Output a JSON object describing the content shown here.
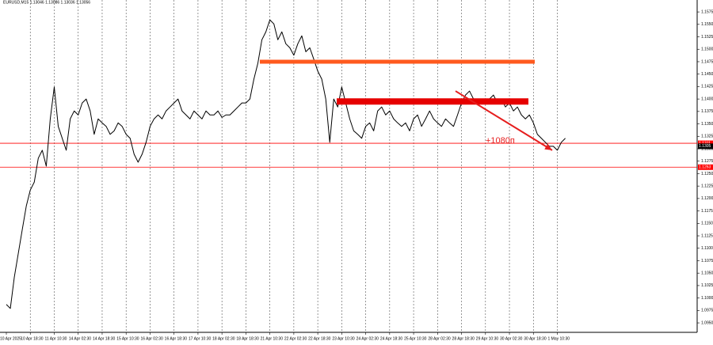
{
  "chart_data": {
    "type": "line",
    "title": "EURUSD,M15  1.13046 1.13086 1.13036 1.13056",
    "categories": [
      "10 Apr 2025",
      null,
      null,
      null,
      null,
      null,
      "10 Apr 18:30",
      null,
      null,
      null,
      null,
      null,
      "11 Apr 10:30",
      null,
      null,
      null,
      null,
      null,
      "14 Apr 02:30",
      null,
      null,
      null,
      null,
      null,
      "14 Apr 18:30",
      null,
      null,
      null,
      null,
      null,
      "15 Apr 10:30",
      null,
      null,
      null,
      null,
      null,
      "16 Apr 02:30",
      null,
      null,
      null,
      null,
      null,
      "16 Apr 18:30",
      null,
      null,
      null,
      null,
      null,
      "17 Apr 10:30",
      null,
      null,
      null,
      null,
      null,
      "18 Apr 02:30",
      null,
      null,
      null,
      null,
      null,
      "18 Apr 18:30",
      null,
      null,
      null,
      null,
      null,
      "21 Apr 10:30",
      null,
      null,
      null,
      null,
      null,
      "22 Apr 02:30",
      null,
      null,
      null,
      null,
      null,
      "22 Apr 18:30",
      null,
      null,
      null,
      null,
      null,
      "23 Apr 10:30",
      null,
      null,
      null,
      null,
      null,
      "24 Apr 02:30",
      null,
      null,
      null,
      null,
      null,
      "24 Apr 18:30",
      null,
      null,
      null,
      null,
      null,
      "25 Apr 10:30",
      null,
      null,
      null,
      null,
      null,
      "28 Apr 02:30",
      null,
      null,
      null,
      null,
      null,
      "28 Apr 18:30",
      null,
      null,
      null,
      null,
      null,
      "29 Apr 10:30",
      null,
      null,
      null,
      null,
      null,
      "30 Apr 02:30",
      null,
      null,
      null,
      null,
      null,
      "30 Apr 18:30",
      null,
      null,
      null,
      null,
      null,
      "1 May 10:30",
      null,
      null
    ],
    "series": [
      {
        "name": "EURUSD",
        "color": "#000000",
        "values": [
          1.0987,
          1.0979,
          1.1042,
          1.109,
          1.1138,
          1.1185,
          1.1217,
          1.1233,
          1.1281,
          1.1297,
          1.1265,
          1.136,
          1.1424,
          1.1345,
          1.1321,
          1.1297,
          1.136,
          1.1376,
          1.1368,
          1.1392,
          1.14,
          1.1376,
          1.1329,
          1.136,
          1.1352,
          1.1345,
          1.1329,
          1.1336,
          1.1352,
          1.1345,
          1.1329,
          1.1321,
          1.1289,
          1.1273,
          1.1289,
          1.1313,
          1.1345,
          1.136,
          1.1368,
          1.136,
          1.1376,
          1.1384,
          1.1392,
          1.14,
          1.1376,
          1.1368,
          1.136,
          1.1376,
          1.1368,
          1.136,
          1.1376,
          1.1368,
          1.1368,
          1.1376,
          1.1363,
          1.1368,
          1.1368,
          1.1376,
          1.1384,
          1.1392,
          1.1392,
          1.14,
          1.144,
          1.1472,
          1.1519,
          1.1535,
          1.1559,
          1.1551,
          1.1519,
          1.1535,
          1.1511,
          1.1503,
          1.1488,
          1.1511,
          1.1527,
          1.1495,
          1.1503,
          1.148,
          1.1456,
          1.144,
          1.14,
          1.1313,
          1.14,
          1.1384,
          1.1424,
          1.1392,
          1.136,
          1.1336,
          1.1329,
          1.1321,
          1.1345,
          1.1352,
          1.1336,
          1.1376,
          1.1384,
          1.1368,
          1.1376,
          1.136,
          1.1352,
          1.1345,
          1.1352,
          1.1336,
          1.136,
          1.1368,
          1.1345,
          1.136,
          1.1376,
          1.136,
          1.1352,
          1.1345,
          1.136,
          1.1352,
          1.1345,
          1.1368,
          1.1392,
          1.1408,
          1.1416,
          1.14,
          1.1392,
          1.14,
          1.1392,
          1.14,
          1.1408,
          1.1392,
          1.14,
          1.1384,
          1.1392,
          1.1376,
          1.1384,
          1.1368,
          1.136,
          1.1368,
          1.1352,
          1.1329,
          1.1321,
          1.1313,
          1.1305,
          1.1305,
          1.1297,
          1.1313,
          1.1321
        ]
      }
    ],
    "ylim": [
      1.0931,
      1.1599
    ],
    "yticks": [
      {
        "value": 1.095,
        "label": "1.0950"
      },
      1.0975,
      {
        "value": 1.1,
        "label": "1.1000"
      },
      1.1025,
      {
        "value": 1.105,
        "label": "1.1050"
      },
      1.1075,
      {
        "value": 1.11,
        "label": "1.1100"
      },
      1.1125,
      {
        "value": 1.115,
        "label": "1.1150"
      },
      1.1175,
      {
        "value": 1.12,
        "label": "1.1200"
      },
      1.1225,
      {
        "value": 1.125,
        "label": "1.1250"
      },
      1.1275,
      {
        "value": 1.13,
        "label": "1.1300"
      },
      1.1325,
      {
        "value": 1.135,
        "label": "1.1350"
      },
      1.1375,
      {
        "value": 1.14,
        "label": "1.1400"
      },
      1.1425,
      {
        "value": 1.145,
        "label": "1.1450"
      },
      1.1475,
      {
        "value": 1.15,
        "label": "1.1500"
      },
      1.1525,
      {
        "value": 1.155,
        "label": "1.1550"
      },
      1.1575
    ],
    "grid": true,
    "levels": [
      {
        "value": 1.1475,
        "color": "#ff5a1f"
      },
      {
        "value": 1.1395,
        "color": "#e60000"
      }
    ],
    "hlines": [
      {
        "value": 1.1311,
        "color": "#ff0000"
      },
      {
        "value": 1.1263,
        "color": "#ff0000"
      }
    ],
    "last_price": 1.1305,
    "arrow": {
      "from": 1.1416,
      "to": 1.1297,
      "label": "+1080п",
      "color": "#e61e1e"
    }
  }
}
